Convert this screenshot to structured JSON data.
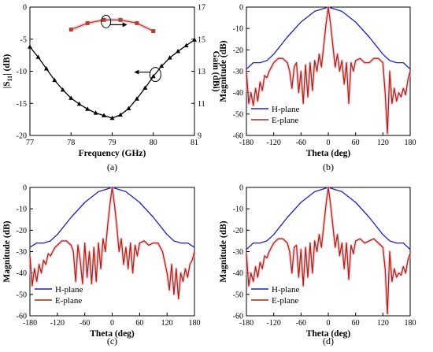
{
  "colors": {
    "s11": "#000000",
    "gain": "#b0412a",
    "h_plane": "#1f1fc8",
    "e_plane": "#a3291a",
    "highlight": "#f4b6c8"
  },
  "chart_data": [
    {
      "panel": "(a)",
      "type": "line",
      "xlabel": "Frequency (GHz)",
      "ylabel": "|S11| (dB)",
      "ylabel_main": "|S",
      "ylabel_sub": "11",
      "ylabel_tail": "| (dB)",
      "y2label": "Gain (dBi)",
      "xlim": [
        77,
        81
      ],
      "ylim": [
        -20,
        0
      ],
      "y2lim": [
        9,
        17
      ],
      "xticks": [
        "77",
        "78",
        "79",
        "80",
        "81"
      ],
      "yticks": [
        "0",
        "-5",
        "-10",
        "-15",
        "-20"
      ],
      "y2ticks": [
        "17",
        "15",
        "13",
        "11",
        "9"
      ],
      "series": [
        {
          "axis": "left",
          "marker": "triangle",
          "x": [
            77,
            77.2,
            77.4,
            77.6,
            77.8,
            78,
            78.2,
            78.4,
            78.6,
            78.8,
            79,
            79.2,
            79.4,
            79.6,
            79.8,
            80,
            80.2,
            80.4,
            80.6,
            80.8,
            81
          ],
          "y": [
            -6.2,
            -7.8,
            -9.6,
            -11.4,
            -12.9,
            -14.2,
            -15.1,
            -15.9,
            -16.5,
            -16.9,
            -17.3,
            -16.8,
            -15.8,
            -14.3,
            -12.6,
            -10.8,
            -9.2,
            -7.9,
            -6.9,
            -6.0,
            -5.1
          ]
        },
        {
          "axis": "right",
          "marker": "square",
          "x": [
            78,
            78.4,
            78.8,
            79.2,
            79.6,
            80
          ],
          "y": [
            15.6,
            16.0,
            16.2,
            16.2,
            16.0,
            15.5
          ]
        }
      ]
    },
    {
      "panel": "(b)",
      "type": "line",
      "xlabel": "Theta (deg)",
      "ylabel": "Magnitude (dB)",
      "xlim": [
        -180,
        180
      ],
      "ylim": [
        -60,
        0
      ],
      "xticks": [
        "-180",
        "-120",
        "-60",
        "0",
        "60",
        "120",
        "180"
      ],
      "yticks": [
        "0",
        "-10",
        "-20",
        "-30",
        "-40",
        "-50",
        "-60"
      ],
      "series": [
        {
          "name": "H-plane",
          "x": [
            -180,
            -165,
            -150,
            -135,
            -120,
            -90,
            -60,
            -30,
            0,
            30,
            60,
            90,
            120,
            135,
            150,
            165,
            180
          ],
          "y": [
            -29,
            -26,
            -26,
            -25,
            -22,
            -14,
            -7,
            -2,
            0,
            -2,
            -7,
            -14,
            -22,
            -25,
            -26,
            -26,
            -29
          ]
        },
        {
          "name": "E-plane",
          "x": [
            -180,
            -175,
            -170,
            -165,
            -160,
            -155,
            -150,
            -145,
            -140,
            -135,
            -130,
            -125,
            -120,
            -110,
            -100,
            -90,
            -85,
            -80,
            -75,
            -70,
            -65,
            -60,
            -55,
            -50,
            -45,
            -40,
            -35,
            -30,
            -25,
            -20,
            -15,
            -10,
            -5,
            0,
            5,
            10,
            15,
            20,
            25,
            30,
            35,
            40,
            45,
            50,
            55,
            60,
            70,
            80,
            90,
            100,
            110,
            120,
            125,
            130,
            135,
            140,
            145,
            150,
            155,
            160,
            165,
            170,
            175,
            180
          ],
          "y": [
            -30,
            -45,
            -40,
            -46,
            -38,
            -44,
            -35,
            -39,
            -32,
            -33,
            -30,
            -28,
            -26,
            -24,
            -24,
            -26,
            -30,
            -38,
            -28,
            -26,
            -40,
            -30,
            -45,
            -27,
            -42,
            -26,
            -39,
            -25,
            -30,
            -22,
            -28,
            -18,
            -8,
            0,
            -8,
            -18,
            -28,
            -22,
            -30,
            -25,
            -36,
            -26,
            -45,
            -26,
            -30,
            -25,
            -24,
            -26,
            -26,
            -24,
            -24,
            -26,
            -40,
            -59,
            -30,
            -45,
            -38,
            -44,
            -40,
            -42,
            -38,
            -41,
            -34,
            -30
          ]
        }
      ],
      "legend": [
        "H-plane",
        "E-plane"
      ]
    },
    {
      "panel": "(c)",
      "type": "line",
      "xlabel": "Theta (deg)",
      "ylabel": "Magnitude (dB)",
      "xlim": [
        -180,
        180
      ],
      "ylim": [
        -60,
        0
      ],
      "xticks": [
        "-180",
        "-120",
        "-60",
        "0",
        "60",
        "120",
        "180"
      ],
      "yticks": [
        "0",
        "-10",
        "-20",
        "-30",
        "-40",
        "-50",
        "-60"
      ],
      "series": [
        {
          "name": "H-plane",
          "x": [
            -180,
            -165,
            -150,
            -135,
            -120,
            -90,
            -60,
            -30,
            0,
            30,
            60,
            90,
            120,
            135,
            150,
            165,
            180
          ],
          "y": [
            -28,
            -26,
            -26,
            -25,
            -22,
            -14,
            -7,
            -2,
            0,
            -2,
            -7,
            -14,
            -22,
            -25,
            -26,
            -26,
            -28
          ]
        },
        {
          "name": "E-plane",
          "x": [
            -180,
            -175,
            -170,
            -165,
            -160,
            -155,
            -150,
            -145,
            -140,
            -135,
            -130,
            -125,
            -120,
            -110,
            -100,
            -90,
            -85,
            -80,
            -75,
            -70,
            -65,
            -60,
            -55,
            -50,
            -45,
            -40,
            -35,
            -30,
            -25,
            -20,
            -15,
            -10,
            -5,
            0,
            5,
            10,
            15,
            20,
            25,
            30,
            35,
            40,
            45,
            50,
            55,
            60,
            70,
            80,
            90,
            100,
            110,
            120,
            125,
            130,
            135,
            140,
            145,
            150,
            155,
            160,
            165,
            170,
            175,
            180
          ],
          "y": [
            -32,
            -46,
            -38,
            -44,
            -36,
            -40,
            -34,
            -36,
            -31,
            -32,
            -30,
            -28,
            -27,
            -25,
            -25,
            -27,
            -30,
            -44,
            -27,
            -34,
            -45,
            -26,
            -42,
            -30,
            -45,
            -28,
            -44,
            -26,
            -38,
            -24,
            -30,
            -18,
            -8,
            0,
            -8,
            -18,
            -30,
            -24,
            -36,
            -28,
            -38,
            -26,
            -40,
            -27,
            -32,
            -26,
            -25,
            -27,
            -26,
            -26,
            -30,
            -40,
            -48,
            -36,
            -50,
            -38,
            -52,
            -40,
            -44,
            -38,
            -42,
            -36,
            -34,
            -30
          ]
        }
      ],
      "legend": [
        "H-plane",
        "E-plane"
      ]
    },
    {
      "panel": "(d)",
      "type": "line",
      "xlabel": "Theta (deg)",
      "ylabel": "Magnitude (dB)",
      "xlim": [
        -180,
        180
      ],
      "ylim": [
        -60,
        0
      ],
      "xticks": [
        "-180",
        "-120",
        "-60",
        "0",
        "60",
        "120",
        "180"
      ],
      "yticks": [
        "0",
        "-10",
        "-20",
        "-30",
        "-40",
        "-50",
        "-60"
      ],
      "series": [
        {
          "name": "H-plane",
          "x": [
            -180,
            -165,
            -150,
            -135,
            -120,
            -90,
            -60,
            -30,
            0,
            30,
            60,
            90,
            120,
            135,
            150,
            165,
            180
          ],
          "y": [
            -29,
            -26,
            -26,
            -25,
            -22,
            -14,
            -7,
            -2,
            0,
            -2,
            -7,
            -14,
            -22,
            -25,
            -26,
            -26,
            -29
          ]
        },
        {
          "name": "E-plane",
          "x": [
            -180,
            -175,
            -170,
            -165,
            -160,
            -155,
            -150,
            -145,
            -140,
            -135,
            -130,
            -125,
            -120,
            -110,
            -100,
            -90,
            -85,
            -80,
            -75,
            -70,
            -65,
            -60,
            -55,
            -50,
            -45,
            -40,
            -35,
            -30,
            -25,
            -20,
            -15,
            -10,
            -5,
            0,
            5,
            10,
            15,
            20,
            25,
            30,
            35,
            40,
            45,
            50,
            55,
            60,
            70,
            80,
            90,
            100,
            110,
            120,
            125,
            130,
            135,
            140,
            145,
            150,
            155,
            160,
            165,
            170,
            175,
            180
          ],
          "y": [
            -31,
            -46,
            -40,
            -44,
            -37,
            -42,
            -35,
            -38,
            -32,
            -33,
            -30,
            -28,
            -26,
            -24,
            -24,
            -26,
            -30,
            -40,
            -28,
            -27,
            -42,
            -29,
            -46,
            -28,
            -42,
            -26,
            -40,
            -25,
            -30,
            -22,
            -28,
            -18,
            -8,
            0,
            -8,
            -18,
            -28,
            -22,
            -32,
            -26,
            -38,
            -26,
            -43,
            -27,
            -31,
            -25,
            -24,
            -26,
            -25,
            -24,
            -26,
            -28,
            -38,
            -59,
            -30,
            -44,
            -38,
            -42,
            -40,
            -41,
            -37,
            -40,
            -34,
            -31
          ]
        }
      ],
      "legend": [
        "H-plane",
        "E-plane"
      ]
    }
  ]
}
